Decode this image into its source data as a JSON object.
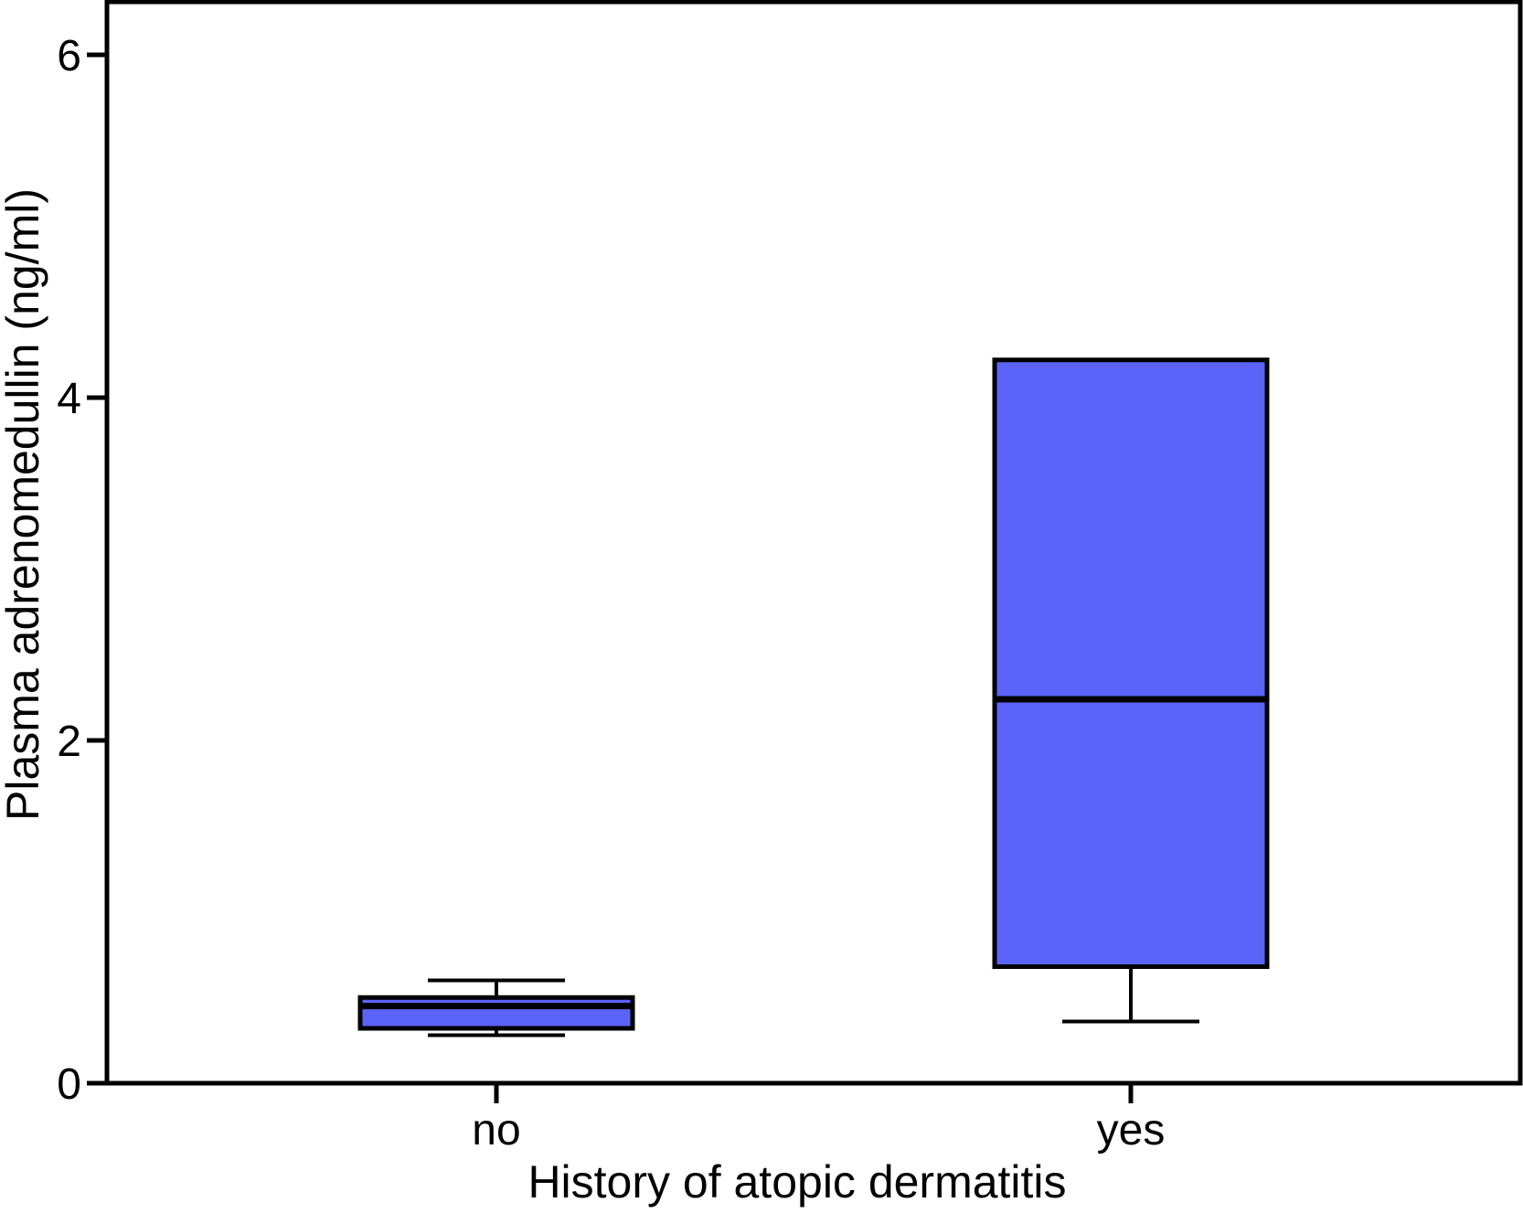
{
  "chart_data": {
    "type": "boxplot",
    "title": "",
    "xlabel": "History of atopic dermatitis",
    "ylabel": "Plasma adrenomedullin (ng/ml)",
    "categories": [
      "no",
      "yes"
    ],
    "yticks": [
      0,
      2,
      4,
      6
    ],
    "ylim": [
      0,
      6.3
    ],
    "grid": false,
    "legend": "none",
    "box_fill": "#5b63f8",
    "box_stroke": "#000000",
    "series": [
      {
        "name": "no",
        "min": 0.28,
        "q1": 0.32,
        "median": 0.45,
        "q3": 0.5,
        "max": 0.6
      },
      {
        "name": "yes",
        "min": 0.36,
        "q1": 0.68,
        "median": 2.24,
        "q3": 4.22,
        "max": 4.22
      }
    ]
  }
}
